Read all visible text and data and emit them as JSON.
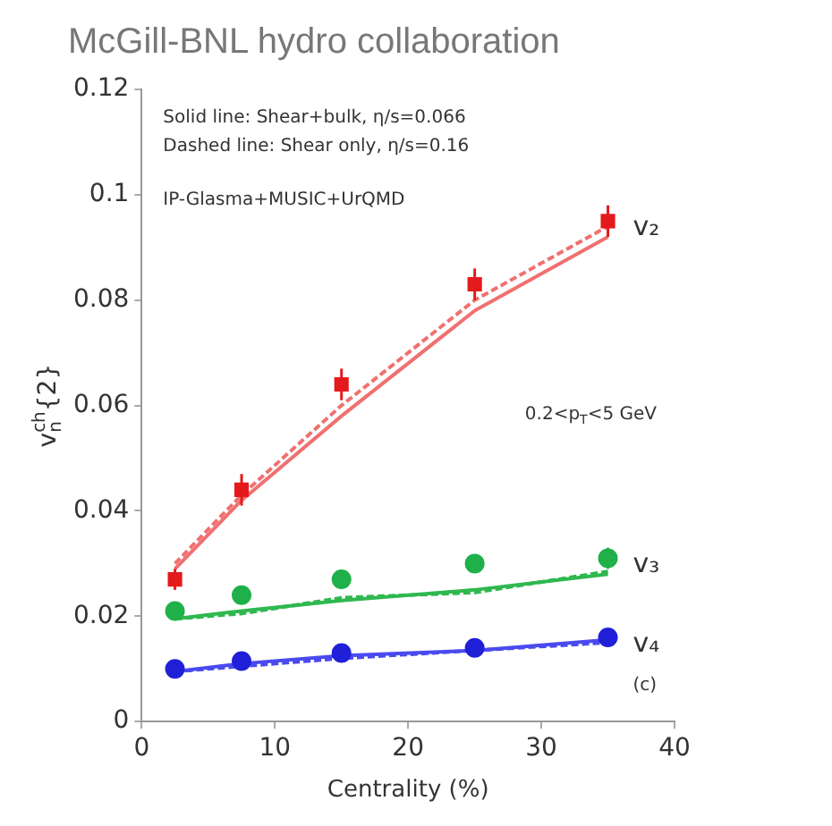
{
  "chart_data": {
    "type": "scatter",
    "title": "McGill-BNL hydro collaboration",
    "xlabel": "Centrality (%)",
    "ylabel": "v$_{n}$$^{ch}${2}",
    "xlim": [
      0,
      40
    ],
    "xticks": [
      0,
      10,
      20,
      30,
      40
    ],
    "ylim": [
      0,
      0.12
    ],
    "yticks": [
      0,
      0.02,
      0.04,
      0.06,
      0.08,
      0.1,
      0.12
    ],
    "grid": false,
    "legend": false,
    "annotations": [
      "Solid line: Shear+bulk, η/s=0.066",
      "Dashed line: Shear only, η/s=0.16",
      "IP-Glasma+MUSIC+UrQMD",
      "0.2<p$_{T}$<5 GeV",
      "(c)"
    ],
    "series": [
      {
        "type": "line",
        "color": "#f07070",
        "line_style": "solid",
        "marker": "none",
        "x": [
          2.5,
          7.5,
          15,
          25,
          35
        ],
        "values": [
          0.029,
          0.042,
          0.058,
          0.078,
          0.092
        ]
      },
      {
        "type": "line",
        "color": "#f07070",
        "line_style": "dashed",
        "marker": "none",
        "x": [
          2.5,
          7.5,
          15,
          25,
          35
        ],
        "values": [
          0.03,
          0.043,
          0.06,
          0.08,
          0.094
        ]
      },
      {
        "type": "line",
        "color": "#2fb84f",
        "line_style": "solid",
        "marker": "none",
        "x": [
          2.5,
          7.5,
          15,
          25,
          35
        ],
        "values": [
          0.0195,
          0.021,
          0.023,
          0.025,
          0.028
        ]
      },
      {
        "type": "line",
        "color": "#2fb84f",
        "line_style": "dashed",
        "marker": "none",
        "x": [
          2.5,
          7.5,
          15,
          25,
          35
        ],
        "values": [
          0.0195,
          0.0205,
          0.0235,
          0.0245,
          0.0285
        ]
      },
      {
        "type": "line",
        "color": "#4a4af0",
        "line_style": "solid",
        "marker": "none",
        "x": [
          2.5,
          7.5,
          15,
          25,
          35
        ],
        "values": [
          0.0095,
          0.011,
          0.0125,
          0.0135,
          0.0155
        ]
      },
      {
        "type": "line",
        "color": "#4a4af0",
        "line_style": "dashed",
        "marker": "none",
        "x": [
          2.5,
          7.5,
          15,
          25,
          35
        ],
        "values": [
          0.0095,
          0.0105,
          0.012,
          0.0135,
          0.015
        ]
      },
      {
        "name": "v₂",
        "color": "#e41a1c",
        "marker": "square",
        "x": [
          2.5,
          7.5,
          15,
          25,
          35
        ],
        "values": [
          0.027,
          0.044,
          0.064,
          0.083,
          0.095
        ],
        "errors": [
          0.002,
          0.003,
          0.003,
          0.003,
          0.003
        ]
      },
      {
        "name": "v₃",
        "color": "#1fb04a",
        "marker": "circle",
        "x": [
          2.5,
          7.5,
          15,
          25,
          35
        ],
        "values": [
          0.021,
          0.024,
          0.027,
          0.03,
          0.031
        ],
        "errors": [
          0.001,
          0.001,
          0.001,
          0.001,
          0.002
        ]
      },
      {
        "name": "v₄",
        "color": "#2020d8",
        "marker": "circle",
        "x": [
          2.5,
          7.5,
          15,
          25,
          35
        ],
        "values": [
          0.01,
          0.0115,
          0.013,
          0.014,
          0.016
        ],
        "errors": [
          0.0005,
          0.0005,
          0.0005,
          0.0005,
          0.0005
        ]
      }
    ]
  }
}
